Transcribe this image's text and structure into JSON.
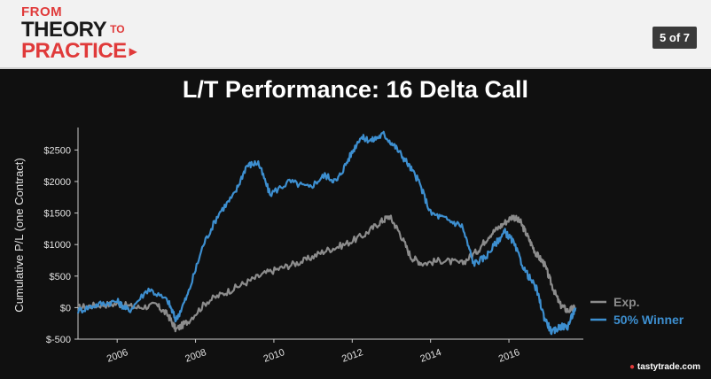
{
  "header": {
    "logo": {
      "from": "FROM",
      "theory": "THEORY",
      "to": "TO",
      "practice": "PRACTICE"
    },
    "page_indicator": "5 of 7"
  },
  "slide": {
    "title": "L/T Performance: 16 Delta Call",
    "brand": "tastytrade.com"
  },
  "colors": {
    "header_bg": "#f2f2f2",
    "accent_red": "#e03a3a",
    "slide_bg": "#101010",
    "series_exp": "#8c8c8c",
    "series_50": "#3d8fd0"
  },
  "chart_data": {
    "type": "line",
    "ylabel": "Cumulative P/L (one Contract)",
    "xlabel": "",
    "ylim": [
      -500,
      2800
    ],
    "xlim": [
      2005.0,
      2017.9
    ],
    "x_ticks": [
      2006,
      2008,
      2010,
      2012,
      2014,
      2016
    ],
    "x_tick_labels": [
      "2006",
      "2008",
      "2010",
      "2012",
      "2014",
      "2016"
    ],
    "y_ticks": [
      -500,
      0,
      500,
      1000,
      1500,
      2000,
      2500
    ],
    "y_tick_labels": [
      "$-500",
      "$0",
      "$500",
      "$1000",
      "$1500",
      "$2000",
      "$2500"
    ],
    "legend_position": "bottom-right",
    "series": [
      {
        "name": "Exp.",
        "color": "#8c8c8c",
        "x": [
          2005.0,
          2005.5,
          2006.0,
          2006.5,
          2007.0,
          2007.3,
          2007.5,
          2007.8,
          2008.3,
          2008.8,
          2009.3,
          2009.8,
          2010.3,
          2010.8,
          2011.3,
          2011.8,
          2012.3,
          2012.7,
          2012.95,
          2013.2,
          2013.5,
          2013.8,
          2014.3,
          2014.8,
          2015.2,
          2015.5,
          2015.8,
          2016.1,
          2016.3,
          2016.5,
          2016.7,
          2016.9,
          2017.1,
          2017.3,
          2017.5,
          2017.7
        ],
        "y": [
          0,
          40,
          60,
          0,
          40,
          -120,
          -350,
          -220,
          100,
          250,
          400,
          550,
          650,
          750,
          900,
          1000,
          1150,
          1350,
          1450,
          1200,
          800,
          700,
          750,
          700,
          900,
          1150,
          1300,
          1450,
          1350,
          1100,
          850,
          700,
          350,
          50,
          -50,
          0
        ]
      },
      {
        "name": "50% Winner",
        "color": "#3d8fd0",
        "x": [
          2005.0,
          2005.5,
          2006.0,
          2006.3,
          2006.8,
          2007.3,
          2007.5,
          2007.8,
          2008.2,
          2008.6,
          2009.0,
          2009.3,
          2009.6,
          2009.9,
          2010.4,
          2010.9,
          2011.3,
          2011.6,
          2011.9,
          2012.2,
          2012.5,
          2012.8,
          2013.1,
          2013.4,
          2013.7,
          2014.0,
          2014.4,
          2014.8,
          2015.1,
          2015.4,
          2015.7,
          2015.9,
          2016.1,
          2016.4,
          2016.7,
          2016.9,
          2017.1,
          2017.3,
          2017.5,
          2017.7
        ],
        "y": [
          -50,
          50,
          100,
          -50,
          300,
          100,
          -200,
          200,
          1000,
          1500,
          1800,
          2250,
          2300,
          1800,
          2000,
          1900,
          2100,
          2000,
          2350,
          2700,
          2650,
          2750,
          2550,
          2300,
          2000,
          1500,
          1400,
          1300,
          700,
          800,
          1050,
          1200,
          1050,
          600,
          300,
          -150,
          -400,
          -300,
          -300,
          0
        ]
      }
    ]
  }
}
